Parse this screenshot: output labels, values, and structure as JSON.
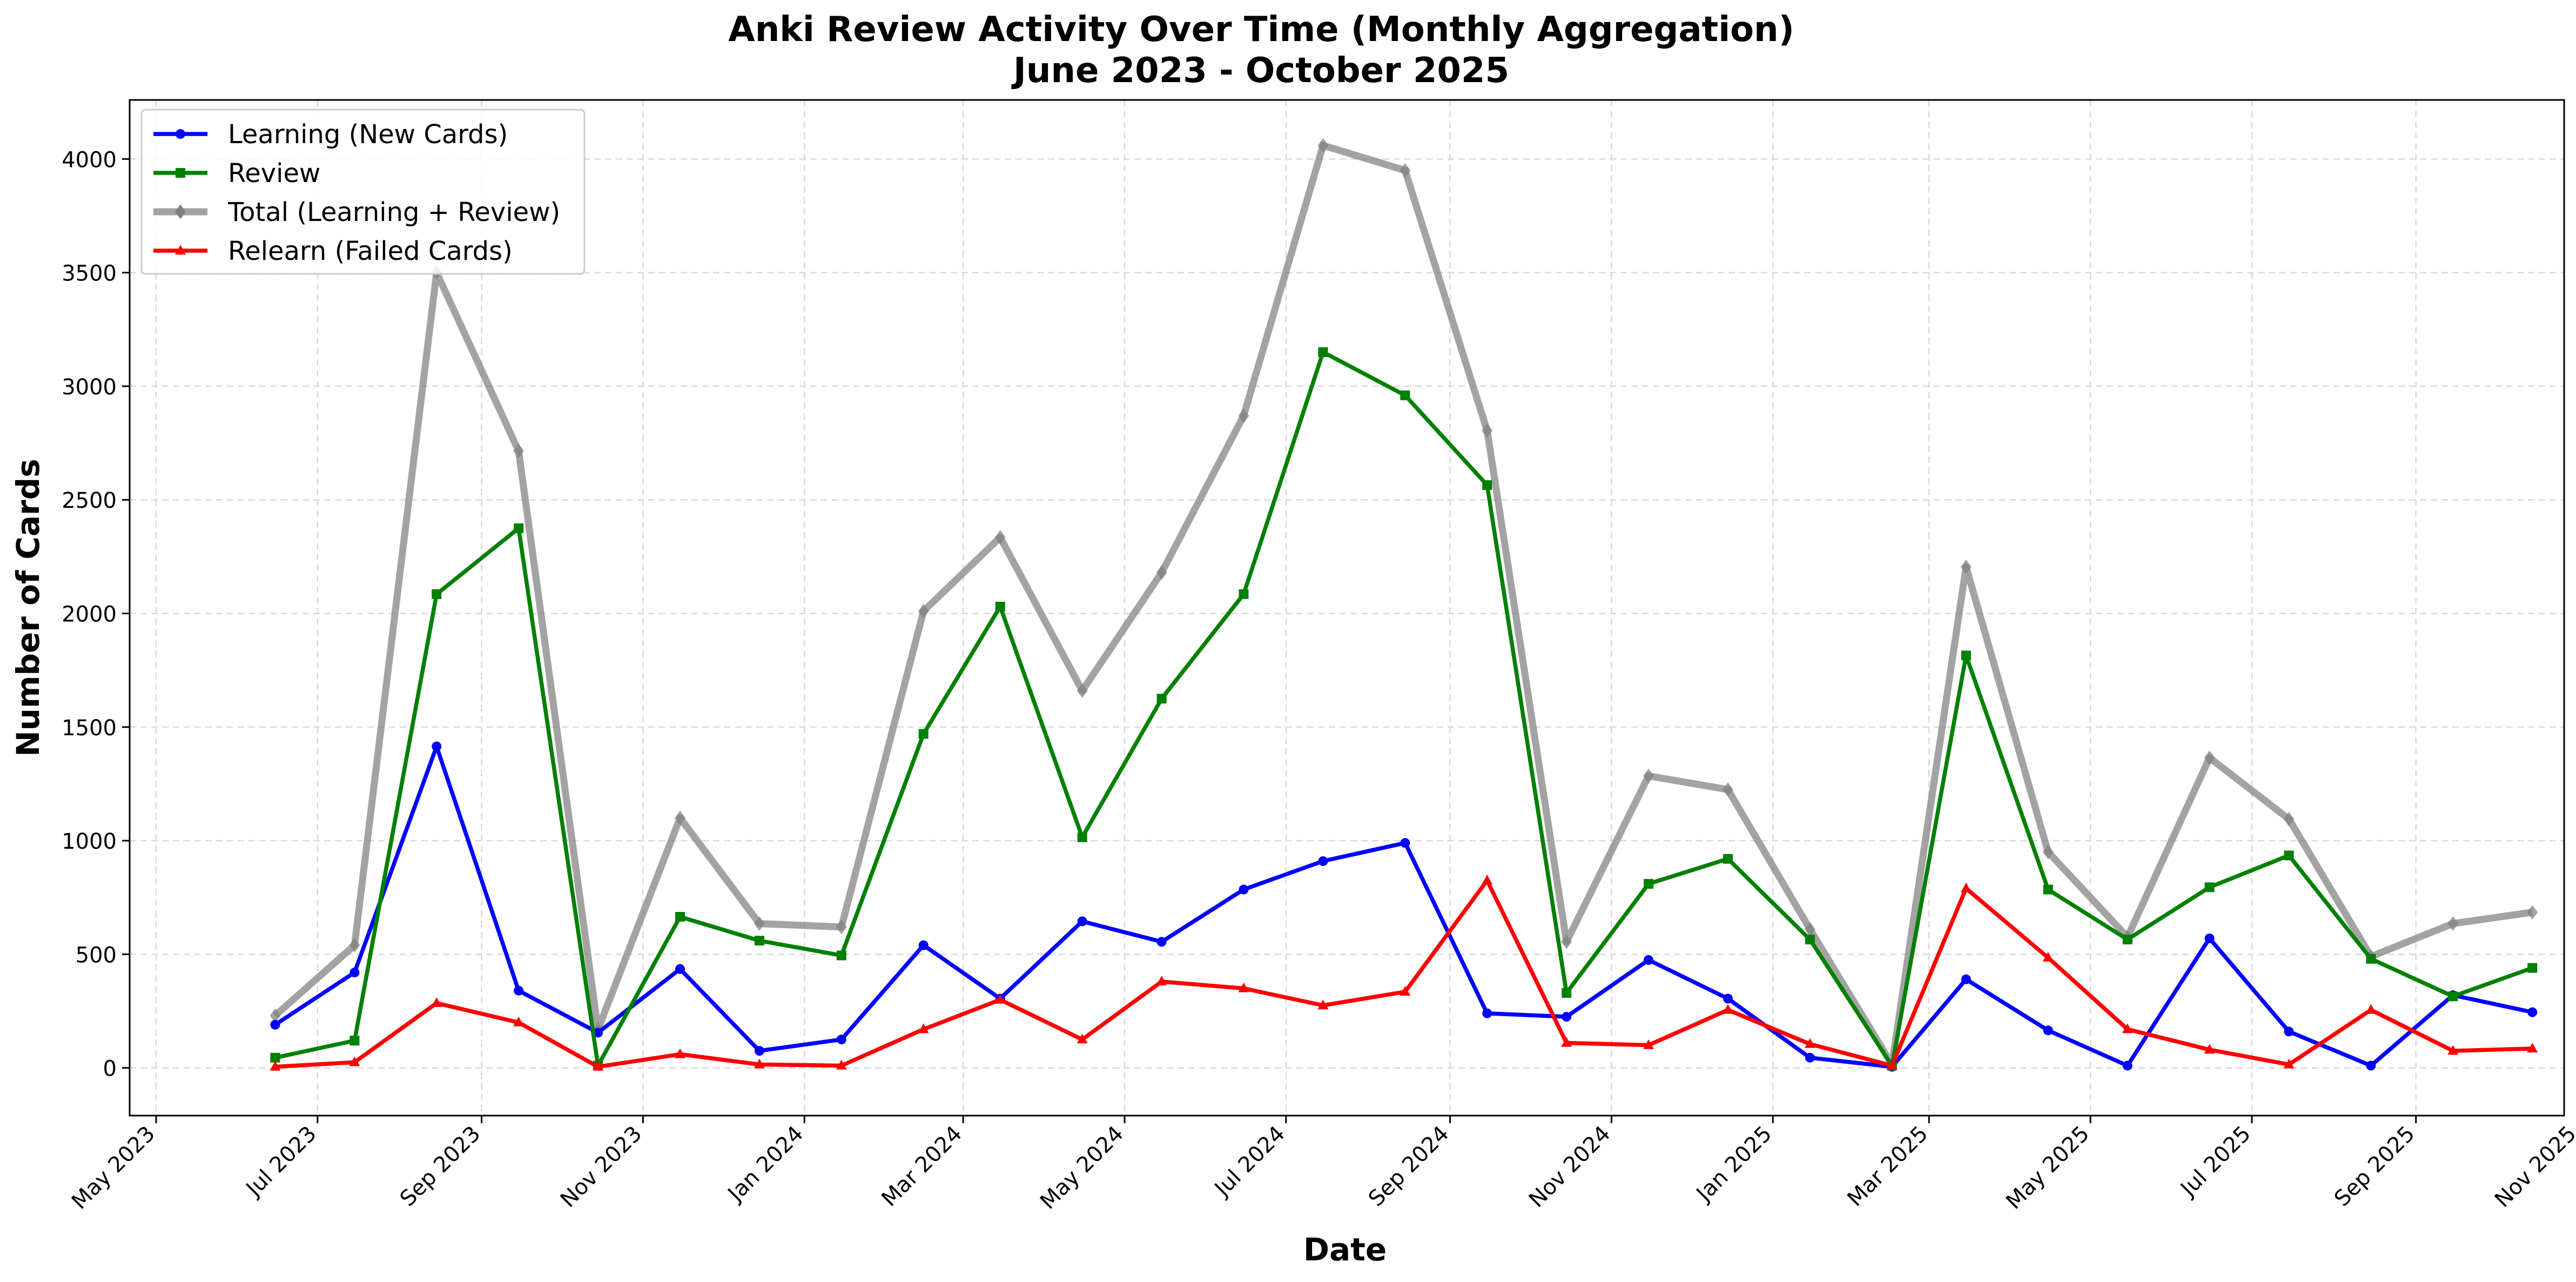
{
  "chart_data": {
    "type": "line",
    "title": "Anki Review Activity Over Time (Monthly Aggregation)",
    "subtitle": "June 2023 - October 2025",
    "xlabel": "Date",
    "ylabel": "Number of Cards",
    "x": [
      "2023-06",
      "2023-07",
      "2023-08",
      "2023-09",
      "2023-10",
      "2023-11",
      "2023-12",
      "2024-01",
      "2024-02",
      "2024-03",
      "2024-04",
      "2024-05",
      "2024-06",
      "2024-07",
      "2024-08",
      "2024-09",
      "2024-10",
      "2024-11",
      "2024-12",
      "2025-01",
      "2025-02",
      "2025-03",
      "2025-04",
      "2025-05",
      "2025-06",
      "2025-07",
      "2025-08",
      "2025-09",
      "2025-10"
    ],
    "xticks": [
      "May 2023",
      "Jul 2023",
      "Sep 2023",
      "Nov 2023",
      "Jan 2024",
      "Mar 2024",
      "May 2024",
      "Jul 2024",
      "Sep 2024",
      "Nov 2024",
      "Jan 2025",
      "Mar 2025",
      "May 2025",
      "Jul 2025",
      "Sep 2025",
      "Nov 2025"
    ],
    "xlim": [
      "2023-04-21",
      "2025-10-27"
    ],
    "ylim": [
      -210,
      4260
    ],
    "yticks": [
      0,
      500,
      1000,
      1500,
      2000,
      2500,
      3000,
      3500,
      4000
    ],
    "grid": true,
    "legend_position": "top-left",
    "series": [
      {
        "name": "Learning (New Cards)",
        "color": "#0000ff",
        "marker": "circle",
        "values": [
          190,
          420,
          1415,
          340,
          155,
          435,
          75,
          125,
          540,
          305,
          645,
          555,
          785,
          910,
          990,
          240,
          225,
          475,
          305,
          45,
          5,
          390,
          165,
          10,
          570,
          160,
          10,
          320,
          245
        ]
      },
      {
        "name": "Review",
        "color": "#008000",
        "marker": "square",
        "values": [
          45,
          120,
          2085,
          2375,
          10,
          665,
          560,
          495,
          1470,
          2030,
          1015,
          1625,
          2085,
          3150,
          2960,
          2565,
          330,
          810,
          920,
          565,
          10,
          1815,
          785,
          565,
          795,
          935,
          480,
          315,
          440
        ]
      },
      {
        "name": "Total (Learning + Review)",
        "color": "#808080",
        "marker": "diamond",
        "values": [
          230,
          540,
          3500,
          2715,
          170,
          1100,
          635,
          620,
          2010,
          2335,
          1660,
          2180,
          2870,
          4060,
          3950,
          2805,
          555,
          1285,
          1225,
          610,
          15,
          2205,
          950,
          575,
          1365,
          1095,
          490,
          635,
          685
        ]
      },
      {
        "name": "Relearn (Failed Cards)",
        "color": "#ff0000",
        "marker": "triangle",
        "values": [
          5,
          25,
          285,
          200,
          5,
          60,
          15,
          10,
          170,
          300,
          125,
          380,
          350,
          275,
          335,
          825,
          110,
          100,
          255,
          105,
          10,
          790,
          485,
          170,
          80,
          15,
          255,
          75,
          85
        ]
      }
    ]
  }
}
